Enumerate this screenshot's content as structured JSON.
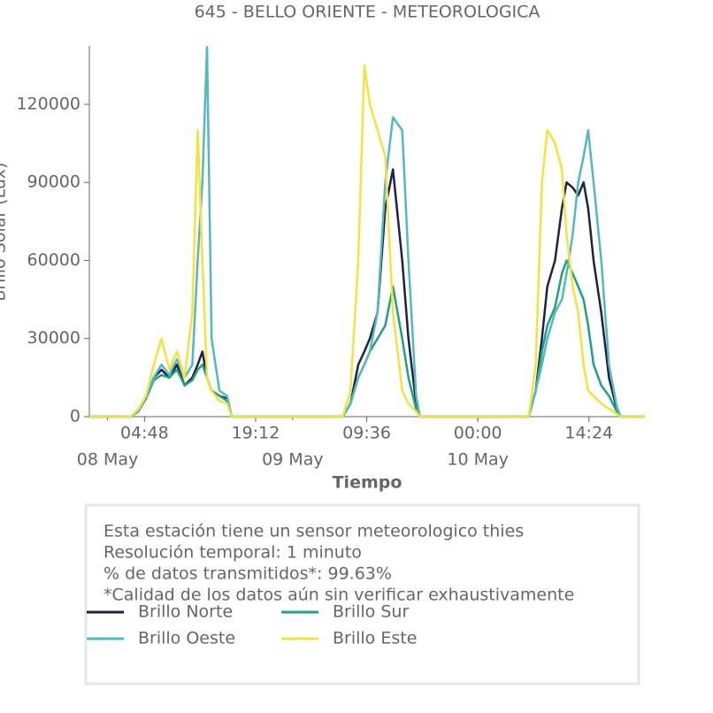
{
  "chart_data": {
    "type": "line",
    "title": "645 - BELLO ORIENTE - METEOROLOGICA",
    "xlabel": "Tiempo",
    "ylabel": "Brillo Solar (Lux)",
    "x": [
      -2.35,
      3,
      4,
      5,
      6,
      7,
      8,
      9,
      10,
      11,
      11.7,
      12.3,
      12.9,
      13.5,
      14.5,
      15.5,
      16.1,
      17,
      30,
      30.5,
      31.5,
      32.5,
      33.3,
      34,
      35,
      36,
      37,
      38.2,
      39,
      40,
      40.5,
      41.5,
      54,
      54.6,
      55.5,
      56.3,
      57,
      58,
      58.9,
      59.5,
      60.3,
      61,
      61.7,
      62.3,
      63,
      64,
      65,
      66,
      66.5,
      69.65
    ],
    "series": [
      {
        "name": "Brillo Norte",
        "color": "#1f2146",
        "values": [
          0,
          0,
          2000,
          8000,
          15000,
          18000,
          15000,
          20000,
          12000,
          15000,
          20000,
          25000,
          15000,
          10000,
          8000,
          7000,
          0,
          0,
          0,
          0,
          5000,
          20000,
          25000,
          30000,
          40000,
          80000,
          95000,
          60000,
          30000,
          5000,
          0,
          0,
          0,
          0,
          10000,
          30000,
          50000,
          60000,
          80000,
          90000,
          88000,
          85000,
          90000,
          80000,
          60000,
          40000,
          15000,
          3000,
          0,
          0
        ]
      },
      {
        "name": "Brillo Sur",
        "color": "#22a084",
        "values": [
          0,
          0,
          2000,
          7000,
          14000,
          16000,
          15000,
          18000,
          12000,
          14000,
          18000,
          20000,
          15000,
          10000,
          8000,
          6000,
          0,
          0,
          0,
          0,
          5000,
          15000,
          20000,
          25000,
          30000,
          35000,
          50000,
          30000,
          15000,
          3000,
          0,
          0,
          0,
          0,
          10000,
          25000,
          35000,
          42000,
          55000,
          60000,
          55000,
          50000,
          45000,
          35000,
          20000,
          12000,
          8000,
          2000,
          0,
          0
        ]
      },
      {
        "name": "Brillo Oeste",
        "color": "#52b9c1",
        "values": [
          0,
          0,
          2000,
          8000,
          15000,
          20000,
          16000,
          22000,
          15000,
          20000,
          60000,
          90000,
          142000,
          30000,
          10000,
          8000,
          0,
          0,
          0,
          0,
          5000,
          15000,
          20000,
          25000,
          40000,
          90000,
          115000,
          110000,
          60000,
          8000,
          0,
          0,
          0,
          0,
          10000,
          20000,
          30000,
          40000,
          45000,
          55000,
          70000,
          90000,
          100000,
          110000,
          90000,
          60000,
          20000,
          4000,
          0,
          0
        ]
      },
      {
        "name": "Brillo Este",
        "color": "#f5e23a",
        "values": [
          0,
          0,
          3000,
          8000,
          20000,
          30000,
          18000,
          25000,
          15000,
          40000,
          110000,
          60000,
          15000,
          10000,
          6000,
          5000,
          0,
          0,
          0,
          0,
          10000,
          60000,
          135000,
          120000,
          110000,
          100000,
          40000,
          10000,
          5000,
          2000,
          0,
          0,
          0,
          0,
          20000,
          90000,
          110000,
          105000,
          95000,
          70000,
          50000,
          40000,
          20000,
          10000,
          8000,
          5000,
          3000,
          1000,
          0,
          0
        ]
      }
    ],
    "xlim": [
      -2.35,
      69.65
    ],
    "xticks": [
      {
        "value": 4.8,
        "label": "04:48"
      },
      {
        "value": 19.2,
        "label": "19:12"
      },
      {
        "value": 33.6,
        "label": "09:36"
      },
      {
        "value": 48,
        "label": "00:00"
      },
      {
        "value": 62.4,
        "label": "14:24"
      }
    ],
    "xticks_minor": [
      {
        "value": 0,
        "label": "08 May"
      },
      {
        "value": 24,
        "label": "09 May"
      },
      {
        "value": 48,
        "label": "10 May"
      }
    ],
    "ylim": [
      0,
      142400
    ],
    "yticks": [
      0,
      30000,
      60000,
      90000,
      120000
    ],
    "grid": false,
    "annotations": [
      "Esta estación tiene un sensor meteorologico thies",
      "Resolución temporal: 1 minuto",
      "% de datos transmitidos*: 99.63%",
      "*Calidad de los datos aún sin verificar exhaustivamente"
    ]
  }
}
